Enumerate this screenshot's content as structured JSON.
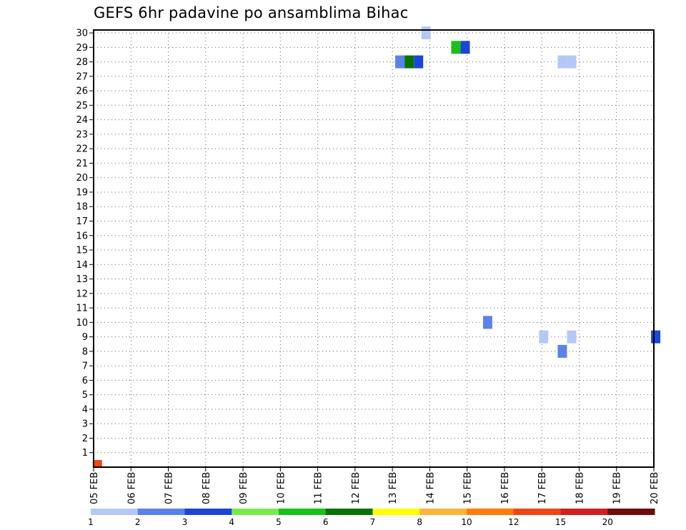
{
  "chart_data": {
    "type": "heatmap",
    "title": "GEFS 6hr padavine po ansamblima Bihac",
    "x_labels": [
      "05 FEB",
      "06 FEB",
      "07 FEB",
      "08 FEB",
      "09 FEB",
      "10 FEB",
      "11 FEB",
      "12 FEB",
      "13 FEB",
      "14 FEB",
      "15 FEB",
      "16 FEB",
      "17 FEB",
      "18 FEB",
      "19 FEB",
      "20 FEB"
    ],
    "y_labels": [
      "1",
      "2",
      "3",
      "4",
      "5",
      "6",
      "7",
      "8",
      "9",
      "10",
      "11",
      "12",
      "13",
      "14",
      "15",
      "16",
      "17",
      "18",
      "19",
      "20",
      "21",
      "22",
      "23",
      "24",
      "25",
      "26",
      "27",
      "28",
      "29",
      "30"
    ],
    "ylim": [
      0,
      30
    ],
    "grid": true,
    "colorbar": {
      "labels": [
        "1",
        "2",
        "3",
        "4",
        "5",
        "6",
        "7",
        "8",
        "10",
        "12",
        "15",
        "20"
      ],
      "colors": [
        "#b4c8f8",
        "#5a82ea",
        "#1c46d8",
        "#78ea50",
        "#18c018",
        "#087208",
        "#ffff00",
        "#ffb43c",
        "#ff7c0a",
        "#f04614",
        "#d21e1e",
        "#700c0c"
      ]
    },
    "cells": [
      [
        8.9,
        30,
        0
      ],
      [
        9.7,
        29,
        4
      ],
      [
        9.95,
        29,
        2
      ],
      [
        18.8,
        29,
        0
      ],
      [
        19.05,
        29,
        5
      ],
      [
        19.3,
        29,
        2
      ],
      [
        20.3,
        29,
        0
      ],
      [
        20.55,
        29,
        2
      ],
      [
        22.55,
        29,
        7
      ],
      [
        22.8,
        29,
        4
      ],
      [
        8.2,
        28,
        1
      ],
      [
        8.45,
        28,
        5
      ],
      [
        8.7,
        28,
        2
      ],
      [
        12.55,
        28,
        0
      ],
      [
        12.8,
        28,
        0
      ],
      [
        19.05,
        26,
        5
      ],
      [
        21.05,
        26,
        0
      ],
      [
        20.3,
        25,
        2
      ],
      [
        22.3,
        22,
        7
      ],
      [
        23.05,
        18,
        0
      ],
      [
        23.05,
        17,
        0
      ],
      [
        22.3,
        16,
        0
      ],
      [
        22.8,
        16,
        0
      ],
      [
        20.55,
        15,
        2
      ],
      [
        20.8,
        15,
        0
      ],
      [
        23.05,
        13,
        2
      ],
      [
        23.3,
        13,
        5
      ],
      [
        10.55,
        10,
        1
      ],
      [
        15.05,
        9,
        2
      ],
      [
        12.05,
        9,
        0
      ],
      [
        12.8,
        9,
        0
      ],
      [
        12.55,
        8,
        1
      ],
      [
        18.55,
        8,
        3
      ],
      [
        19.3,
        8,
        1
      ],
      [
        19.55,
        8,
        1
      ],
      [
        22.8,
        8,
        5
      ],
      [
        23.05,
        8,
        2
      ],
      [
        19.3,
        7,
        0
      ],
      [
        19.55,
        7,
        3
      ],
      [
        19.8,
        7,
        8
      ],
      [
        20.05,
        7,
        3
      ],
      [
        18.55,
        5,
        4
      ],
      [
        18.8,
        5,
        1
      ],
      [
        21.55,
        5,
        3
      ],
      [
        18.55,
        4,
        6
      ],
      [
        18.8,
        4,
        0
      ],
      [
        20.3,
        4,
        0
      ],
      [
        17.8,
        3,
        2
      ],
      [
        18.05,
        3,
        0
      ],
      [
        18.3,
        3,
        0
      ],
      [
        18.55,
        3,
        3
      ],
      [
        18.8,
        3,
        0
      ],
      [
        23.05,
        3,
        7
      ],
      [
        17.55,
        2,
        8
      ],
      [
        17.8,
        2,
        0
      ],
      [
        16.8,
        0,
        7
      ],
      [
        17.05,
        0,
        4
      ],
      [
        17.3,
        0,
        3
      ],
      [
        17.55,
        0,
        0
      ],
      [
        22.55,
        0,
        8
      ],
      [
        22.8,
        0,
        0
      ],
      [
        0.1,
        0,
        9
      ]
    ]
  }
}
